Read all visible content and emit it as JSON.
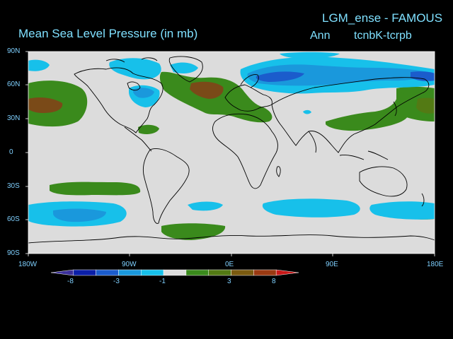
{
  "header": {
    "title": "Mean Sea Level Pressure (in mb)",
    "model": "LGM_ense - FAMOUS",
    "period": "Ann",
    "experiment": "tcnbK-tcrpb"
  },
  "axes": {
    "lat_labels": [
      "90N",
      "60N",
      "30N",
      "0",
      "30S",
      "60S",
      "90S"
    ],
    "lon_labels": [
      "180W",
      "90W",
      "0E",
      "90E",
      "180E"
    ]
  },
  "colorbar": {
    "tick_labels": [
      "-8",
      "-3",
      "-1",
      "3",
      "8"
    ],
    "colors": [
      "#3b2f9a",
      "#0b1fa8",
      "#1b5ccc",
      "#1a98dc",
      "#17c0ea",
      "#dcdcdc",
      "#3a8a1c",
      "#537a14",
      "#7a5a10",
      "#9a3a12",
      "#c81818"
    ]
  },
  "map": {
    "colors": {
      "background": "#dcdcdc",
      "neg1": "#17c0ea",
      "neg2": "#1a98dc",
      "neg3": "#1b5ccc",
      "pos1": "#3a8a1c",
      "pos2": "#537a14",
      "pos3": "#7a4a18",
      "coast": "#000000"
    }
  }
}
